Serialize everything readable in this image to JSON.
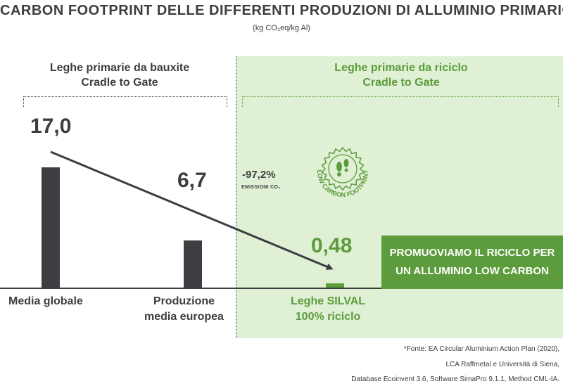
{
  "title": "CARBON FOOTPRINT DELLE DIFFERENTI PRODUZIONI DI ALLUMINIO PRIMARIO*",
  "subtitle": "(kg CO₂eq/kg Al)",
  "sections": {
    "left": {
      "line1": "Leghe primarie da bauxite",
      "line2": "Cradle to Gate"
    },
    "right": {
      "line1": "Leghe primarie da riciclo",
      "line2": "Cradle to Gate"
    }
  },
  "reduction": {
    "value": "-97,2%",
    "label": "EMISSIONI CO₂"
  },
  "badge": {
    "text": "LOW CARBON FOOTPRINT",
    "icon": "footprint-icon"
  },
  "promo": {
    "line1": "PROMUOVIAMO IL RICICLO PER",
    "line2": "UN ALLUMINIO LOW CARBON"
  },
  "sources": [
    "*Fonte: EA Circular Aluminium Action Plan (2020),",
    "LCA Raffmetal e Università di Siena,",
    "Database Ecoinvent 3.6, Software SimaPro 9.1.1, Method CML-IA."
  ],
  "colors": {
    "dark": "#3c3e42",
    "green": "#5c9c3c",
    "panel": "#dff0d5"
  },
  "chart_data": {
    "type": "bar",
    "categories": [
      "Media globale",
      "Produzione media europea",
      "Leghe SILVAL 100% riciclo"
    ],
    "category_lines": [
      [
        "Media globale"
      ],
      [
        "Produzione",
        "media europea"
      ],
      [
        "Leghe SILVAL",
        "100% riciclo"
      ]
    ],
    "values": [
      17.0,
      6.7,
      0.48
    ],
    "value_labels": [
      "17,0",
      "6,7",
      "0,48"
    ],
    "ylim": [
      0,
      22
    ],
    "unit": "kg CO₂eq/kg Al"
  }
}
